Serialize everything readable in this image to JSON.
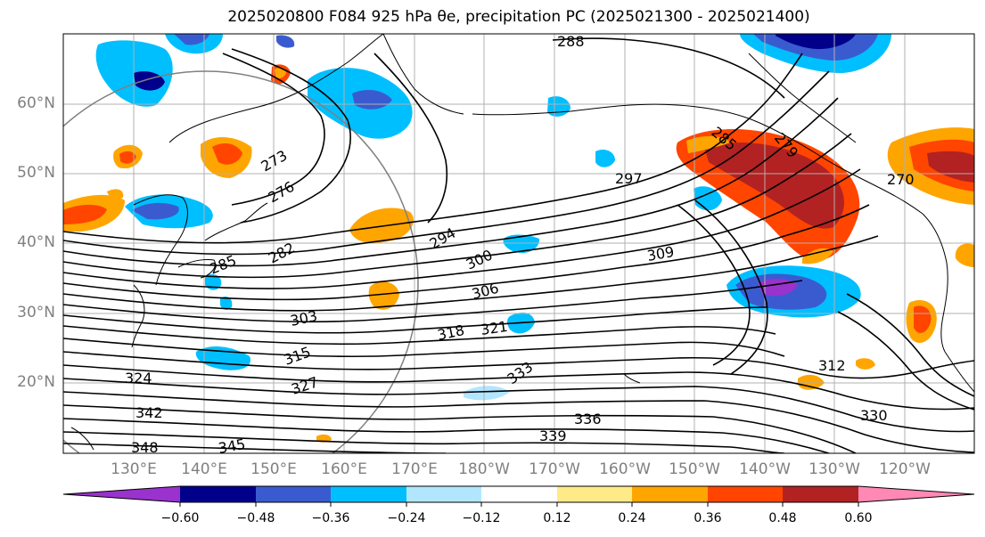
{
  "title": "2025020800 F084 925 hPa θe, precipitation PC (2025021300 - 2025021400)",
  "lat_labels": [
    "60°N",
    "50°N",
    "40°N",
    "30°N",
    "20°N"
  ],
  "lon_labels": [
    "130°E",
    "140°E",
    "150°E",
    "160°E",
    "170°E",
    "180°W",
    "170°W",
    "160°W",
    "150°W",
    "140°W",
    "130°W",
    "120°W"
  ],
  "contour_labels": [
    "288",
    "273",
    "276",
    "282",
    "285",
    "294",
    "297",
    "300",
    "303",
    "306",
    "309",
    "315",
    "318",
    "321",
    "324",
    "327",
    "330",
    "333",
    "336",
    "339",
    "342",
    "345",
    "348",
    "312",
    "279",
    "270",
    "285"
  ],
  "colorbar": {
    "ticks": [
      "−0.60",
      "−0.48",
      "−0.36",
      "−0.24",
      "−0.12",
      "0.12",
      "0.24",
      "0.36",
      "0.48",
      "0.60"
    ],
    "colors": [
      "#9a32cd",
      "#00008b",
      "#3a5bd0",
      "#00bfff",
      "#b2e6ff",
      "#ffffff",
      "#ffea88",
      "#ffa500",
      "#ff4500",
      "#b22222",
      "#ff88b4"
    ]
  }
}
